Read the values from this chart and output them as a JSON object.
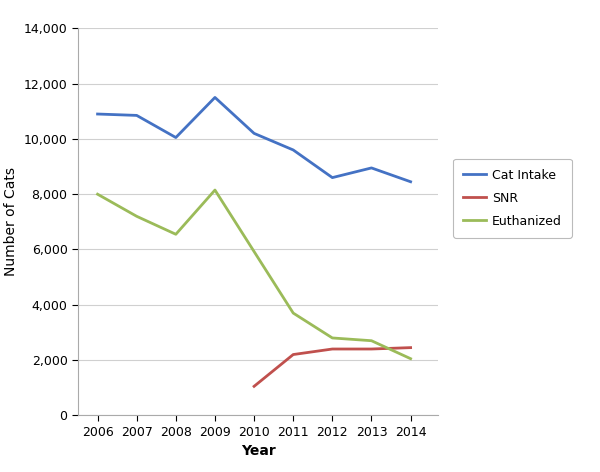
{
  "years": [
    2006,
    2007,
    2008,
    2009,
    2010,
    2011,
    2012,
    2013,
    2014
  ],
  "cat_intake": [
    10900,
    10850,
    10050,
    11500,
    10200,
    9600,
    8600,
    8950,
    8450
  ],
  "snr": [
    null,
    null,
    null,
    null,
    1050,
    2200,
    2400,
    2400,
    2450
  ],
  "euthanized": [
    8000,
    7200,
    6550,
    8150,
    null,
    3700,
    2800,
    2700,
    2050
  ],
  "cat_intake_color": "#4472C4",
  "snr_color": "#C0504D",
  "euthanized_color": "#9BBB59",
  "xlabel": "Year",
  "ylabel": "Number of Cats",
  "ylim": [
    0,
    14000
  ],
  "yticks": [
    0,
    2000,
    4000,
    6000,
    8000,
    10000,
    12000,
    14000
  ],
  "legend_labels": [
    "Cat Intake",
    "SNR",
    "Euthanized"
  ],
  "background_color": "#ffffff",
  "grid_color": "#d0d0d0",
  "spine_color": "#aaaaaa",
  "tick_label_fontsize": 9,
  "axis_label_fontsize": 10,
  "legend_fontsize": 9,
  "linewidth": 2.0
}
